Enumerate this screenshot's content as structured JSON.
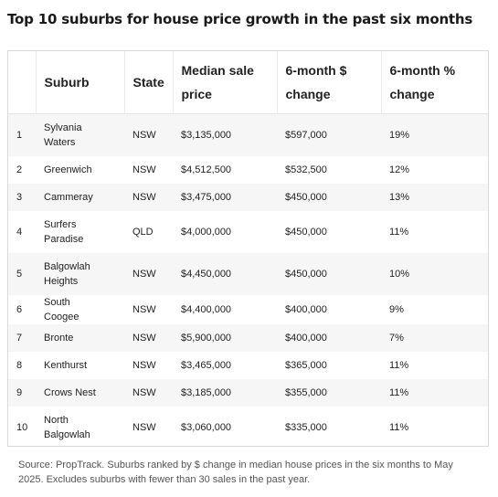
{
  "title": "Top 10 suburbs for house price growth in the past six months",
  "table": {
    "headers": {
      "rank": "",
      "suburb": "Suburb",
      "state": "State",
      "median_line1": "Median sale",
      "median_line2": "price",
      "dchange_line1": "6-month $",
      "dchange_line2": "change",
      "pchange_line1": "6-month %",
      "pchange_line2": "change"
    },
    "rows": [
      {
        "rank": "1",
        "suburb": "Sylvania Waters",
        "state": "NSW",
        "median": "$3,135,000",
        "dchange": "$597,000",
        "pchange": "19%"
      },
      {
        "rank": "2",
        "suburb": "Greenwich",
        "state": "NSW",
        "median": "$4,512,500",
        "dchange": "$532,500",
        "pchange": "12%"
      },
      {
        "rank": "3",
        "suburb": "Cammeray",
        "state": "NSW",
        "median": "$3,475,000",
        "dchange": "$450,000",
        "pchange": "13%"
      },
      {
        "rank": "4",
        "suburb": "Surfers Paradise",
        "state": "QLD",
        "median": "$4,000,000",
        "dchange": "$450,000",
        "pchange": "11%"
      },
      {
        "rank": "5",
        "suburb": "Balgowlah Heights",
        "state": "NSW",
        "median": "$4,450,000",
        "dchange": "$450,000",
        "pchange": "10%"
      },
      {
        "rank": "6",
        "suburb": "South Coogee",
        "state": "NSW",
        "median": "$4,400,000",
        "dchange": "$400,000",
        "pchange": "9%"
      },
      {
        "rank": "7",
        "suburb": "Bronte",
        "state": "NSW",
        "median": "$5,900,000",
        "dchange": "$400,000",
        "pchange": "7%"
      },
      {
        "rank": "8",
        "suburb": "Kenthurst",
        "state": "NSW",
        "median": "$3,465,000",
        "dchange": "$365,000",
        "pchange": "11%"
      },
      {
        "rank": "9",
        "suburb": "Crows Nest",
        "state": "NSW",
        "median": "$3,185,000",
        "dchange": "$355,000",
        "pchange": "11%"
      },
      {
        "rank": "10",
        "suburb": "North Balgowlah",
        "state": "NSW",
        "median": "$3,060,000",
        "dchange": "$335,000",
        "pchange": "11%"
      }
    ]
  },
  "source": "Source: PropTrack. Suburbs ranked by $ change in median house prices in the six months to May 2025. Excludes suburbs with fewer than 30 sales in the past year."
}
